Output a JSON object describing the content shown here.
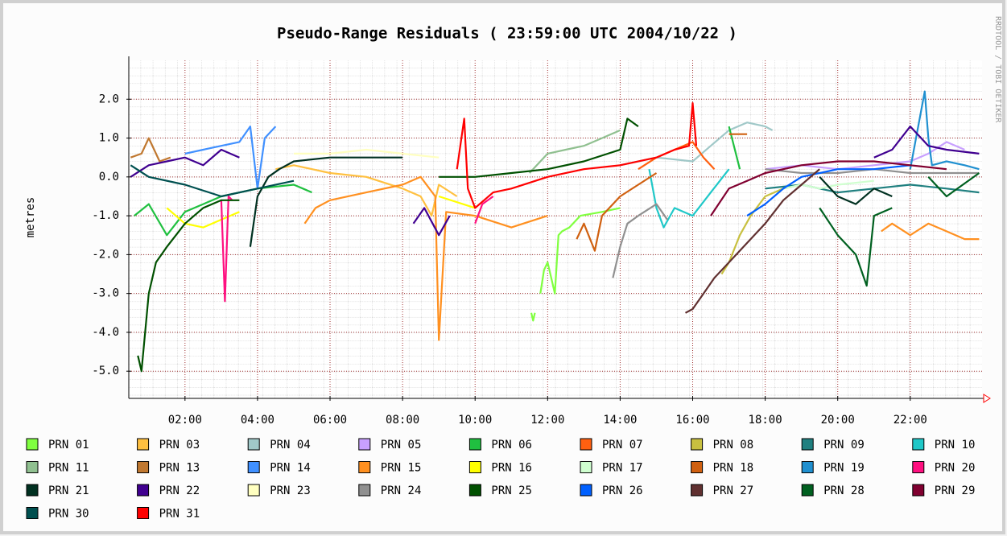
{
  "chart_data": {
    "type": "line",
    "title": "Pseudo-Range Residuals ( 23:59:00 UTC 2004/10/22 )",
    "y_label": "metres",
    "watermark": "RRDTOOL / TOBI OETIKER",
    "xlim": [
      0.45,
      23.98
    ],
    "ylim": [
      -5.7,
      3.0
    ],
    "xticks": [
      {
        "value": 2,
        "label": "02:00"
      },
      {
        "value": 4,
        "label": "04:00"
      },
      {
        "value": 6,
        "label": "06:00"
      },
      {
        "value": 8,
        "label": "08:00"
      },
      {
        "value": 10,
        "label": "10:00"
      },
      {
        "value": 12,
        "label": "12:00"
      },
      {
        "value": 14,
        "label": "14:00"
      },
      {
        "value": 16,
        "label": "16:00"
      },
      {
        "value": 18,
        "label": "18:00"
      },
      {
        "value": 20,
        "label": "20:00"
      },
      {
        "value": 22,
        "label": "22:00"
      }
    ],
    "yticks": [
      {
        "value": -5,
        "label": "-5.0"
      },
      {
        "value": -4,
        "label": "-4.0"
      },
      {
        "value": -3,
        "label": "-3.0"
      },
      {
        "value": -2,
        "label": "-2.0"
      },
      {
        "value": -1,
        "label": "-1.0"
      },
      {
        "value": 0,
        "label": "0.0"
      },
      {
        "value": 1,
        "label": "1.0"
      },
      {
        "value": 2,
        "label": "2.0"
      }
    ],
    "grid": true,
    "series": [
      {
        "name": "PRN 01",
        "color": "#80ff40",
        "x": [
          11.55,
          11.6,
          11.65,
          11.7,
          11.8,
          11.9,
          12.0,
          12.1,
          12.2,
          12.3,
          12.4,
          12.6,
          12.9,
          13.5,
          14.0
        ],
        "values": [
          -3.5,
          -3.7,
          -3.5,
          null,
          -3.0,
          -2.4,
          -2.2,
          -2.6,
          -3.0,
          -1.5,
          -1.4,
          -1.3,
          -1.0,
          -0.9,
          -0.8
        ]
      },
      {
        "name": "PRN 03",
        "color": "#ffc040",
        "x": [
          4.5,
          5,
          6,
          7,
          8,
          8.5,
          8.8,
          9,
          9.5
        ],
        "values": [
          0.2,
          0.3,
          0.1,
          0,
          -0.3,
          -0.5,
          -1.0,
          -0.2,
          -0.5
        ]
      },
      {
        "name": "PRN 04",
        "color": "#a0c8c8",
        "x": [
          14,
          15,
          16,
          16.5,
          17,
          17.5,
          18,
          18.2
        ],
        "values": [
          0.3,
          0.5,
          0.4,
          0.8,
          1.2,
          1.4,
          1.3,
          1.2
        ]
      },
      {
        "name": "PRN 05",
        "color": "#c8a0ff",
        "x": [
          18,
          19,
          20,
          21,
          22,
          22.5,
          23,
          23.5
        ],
        "values": [
          0.2,
          0.3,
          0.2,
          0.3,
          0.4,
          0.6,
          0.9,
          0.7
        ]
      },
      {
        "name": "PRN 06",
        "color": "#20c040",
        "x": [
          0.6,
          1,
          1.5,
          2,
          3,
          4,
          5,
          5.5,
          6,
          17,
          17.3
        ],
        "values": [
          -1.0,
          -0.7,
          -1.5,
          -0.9,
          -0.5,
          -0.3,
          -0.2,
          -0.4,
          null,
          1.3,
          0.2
        ]
      },
      {
        "name": "PRN 07",
        "color": "#ff6010",
        "x": [
          14.5,
          15,
          15.5,
          16,
          16.3,
          16.6
        ],
        "values": [
          0.2,
          0.5,
          0.7,
          0.9,
          0.5,
          0.2
        ]
      },
      {
        "name": "PRN 08",
        "color": "#c8c040",
        "x": [
          16.8,
          17,
          17.3,
          17.6,
          18,
          18.5,
          19
        ],
        "values": [
          -2.5,
          -2.2,
          -1.5,
          -1,
          -0.5,
          -0.3,
          -0.2
        ]
      },
      {
        "name": "PRN 09",
        "color": "#208080",
        "x": [
          18,
          19,
          20,
          21,
          22,
          23,
          23.9
        ],
        "values": [
          -0.3,
          -0.2,
          -0.4,
          -0.3,
          -0.2,
          -0.3,
          -0.4
        ]
      },
      {
        "name": "PRN 10",
        "color": "#20c8c8",
        "x": [
          14.8,
          15,
          15.2,
          15.5,
          16,
          16.5,
          17
        ],
        "values": [
          0.2,
          -0.8,
          -1.3,
          -0.8,
          -1.0,
          -0.4,
          0.2
        ]
      },
      {
        "name": "PRN 11",
        "color": "#90c090",
        "x": [
          11.5,
          12,
          12.5,
          13,
          13.5,
          14
        ],
        "values": [
          0.1,
          0.6,
          0.7,
          0.8,
          1.0,
          1.2
        ]
      },
      {
        "name": "PRN 13",
        "color": "#c07830",
        "x": [
          0.5,
          0.8,
          1.0,
          1.3,
          1.6
        ],
        "values": [
          0.5,
          0.6,
          1.0,
          0.4,
          0.5
        ]
      },
      {
        "name": "PRN 14",
        "color": "#4090ff",
        "x": [
          2,
          2.5,
          3,
          3.5,
          3.8,
          4,
          4.2,
          4.5
        ],
        "values": [
          0.6,
          0.7,
          0.8,
          0.9,
          1.3,
          -0.3,
          1.0,
          1.3
        ]
      },
      {
        "name": "PRN 15",
        "color": "#ff9020",
        "x": [
          5.3,
          5.6,
          6,
          7,
          8,
          8.5,
          8.9,
          9,
          9.2,
          10,
          11,
          12,
          16,
          21.2,
          21.5,
          22,
          22.5,
          23,
          23.5,
          23.9
        ],
        "values": [
          -1.2,
          -0.8,
          -0.6,
          -0.4,
          -0.2,
          0.0,
          -0.5,
          -4.2,
          -0.9,
          -1.0,
          -1.3,
          -1.0,
          null,
          -1.4,
          -1.2,
          -1.5,
          -1.2,
          -1.4,
          -1.6,
          -1.6
        ]
      },
      {
        "name": "PRN 16",
        "color": "#ffff00",
        "x": [
          1.5,
          2,
          2.5,
          3,
          3.5,
          6,
          9,
          10
        ],
        "values": [
          -0.8,
          -1.2,
          -1.3,
          -1.1,
          -0.9,
          null,
          -0.5,
          -0.8
        ]
      },
      {
        "name": "PRN 17",
        "color": "#d0ffd0",
        "x": [
          18.5,
          19,
          19.5,
          20,
          21
        ],
        "values": [
          -0.3,
          -0.2,
          -0.3,
          -0.2,
          -0.1
        ]
      },
      {
        "name": "PRN 18",
        "color": "#d06010",
        "x": [
          12.8,
          13,
          13.3,
          13.5,
          14,
          14.5,
          15,
          16,
          17.0,
          17.5
        ],
        "values": [
          -1.6,
          -1.2,
          -1.9,
          -1.0,
          -0.5,
          -0.2,
          0.1,
          null,
          1.1,
          1.1
        ]
      },
      {
        "name": "PRN 19",
        "color": "#2090d0",
        "x": [
          22,
          22.4,
          22.5,
          22.6,
          23,
          23.5,
          23.9
        ],
        "values": [
          0.2,
          2.2,
          1.0,
          0.3,
          0.4,
          0.3,
          0.2
        ]
      },
      {
        "name": "PRN 20",
        "color": "#ff1080",
        "x": [
          3,
          3.1,
          3.2,
          3.3,
          6,
          10,
          10.2,
          10.5
        ],
        "values": [
          -0.6,
          -3.2,
          -0.5,
          -0.6,
          null,
          -1.2,
          -0.7,
          -0.5
        ]
      },
      {
        "name": "PRN 21",
        "color": "#003020",
        "x": [
          3.8,
          4.0,
          4.3,
          4.6,
          5,
          6,
          7,
          8,
          15,
          19.5,
          20,
          20.5,
          21,
          21.5
        ],
        "values": [
          -1.8,
          -0.5,
          0,
          0.2,
          0.4,
          0.5,
          0.5,
          0.5,
          null,
          0,
          -0.5,
          -0.7,
          -0.3,
          -0.5
        ]
      },
      {
        "name": "PRN 22",
        "color": "#400090",
        "x": [
          0.5,
          1,
          1.5,
          2,
          2.5,
          3,
          3.5,
          6,
          8.3,
          8.6,
          9,
          9.3,
          15,
          21,
          21.5,
          22,
          22.5,
          23,
          23.9
        ],
        "values": [
          0,
          0.3,
          0.4,
          0.5,
          0.3,
          0.7,
          0.5,
          null,
          -1.2,
          -0.8,
          -1.5,
          -1.0,
          null,
          0.5,
          0.7,
          1.3,
          0.8,
          0.7,
          0.6
        ]
      },
      {
        "name": "PRN 23",
        "color": "#ffffc0",
        "x": [
          5,
          6,
          7,
          8,
          9
        ],
        "values": [
          0.6,
          0.6,
          0.7,
          0.6,
          0.5
        ]
      },
      {
        "name": "PRN 24",
        "color": "#909090",
        "x": [
          13.8,
          14,
          14.2,
          14.5,
          15,
          15.3,
          16,
          18,
          19,
          20,
          21,
          22,
          23,
          23.9
        ],
        "values": [
          -2.6,
          -1.8,
          -1.2,
          -1.0,
          -0.7,
          -1.1,
          null,
          0.2,
          0.1,
          0.1,
          0.2,
          0.1,
          0.1,
          0.1
        ]
      },
      {
        "name": "PRN 25",
        "color": "#005000",
        "x": [
          0.7,
          0.8,
          1,
          1.2,
          1.5,
          2,
          2.5,
          3,
          3.5,
          6,
          9,
          10,
          11,
          12,
          13,
          14,
          14.2,
          14.5
        ],
        "values": [
          -4.6,
          -5.0,
          -3.0,
          -2.2,
          -1.8,
          -1.2,
          -0.8,
          -0.6,
          -0.6,
          null,
          0,
          0,
          0.1,
          0.2,
          0.4,
          0.7,
          1.5,
          1.3
        ]
      },
      {
        "name": "PRN 26",
        "color": "#0060ff",
        "x": [
          17.5,
          18,
          18.5,
          19,
          20,
          21,
          22
        ],
        "values": [
          -1.0,
          -0.7,
          -0.3,
          0,
          0.2,
          0.2,
          0.3
        ]
      },
      {
        "name": "PRN 27",
        "color": "#603030",
        "x": [
          15.8,
          16,
          16.3,
          16.6,
          17,
          17.5,
          18,
          18.5,
          19,
          19.5
        ],
        "values": [
          -3.5,
          -3.4,
          -3.0,
          -2.6,
          -2.2,
          -1.7,
          -1.2,
          -0.6,
          -0.2,
          0.2
        ]
      },
      {
        "name": "PRN 28",
        "color": "#006020",
        "x": [
          19.5,
          20,
          20.5,
          20.8,
          21,
          21.5,
          22,
          22.5,
          23,
          23.9
        ],
        "values": [
          -0.8,
          -1.5,
          -2.0,
          -2.8,
          -1.0,
          -0.8,
          null,
          0.0,
          -0.5,
          0.1
        ]
      },
      {
        "name": "PRN 29",
        "color": "#800030",
        "x": [
          16.5,
          17,
          17.5,
          18,
          19,
          20,
          21,
          22,
          23
        ],
        "values": [
          -1.0,
          -0.3,
          -0.1,
          0.1,
          0.3,
          0.4,
          0.4,
          0.3,
          0.2
        ]
      },
      {
        "name": "PRN 30",
        "color": "#005050",
        "x": [
          0.5,
          1,
          2,
          3,
          4,
          5
        ],
        "values": [
          0.3,
          0,
          -0.2,
          -0.5,
          -0.3,
          -0.1
        ]
      },
      {
        "name": "PRN 31",
        "color": "#ff0000",
        "x": [
          9.5,
          9.7,
          9.8,
          10,
          10.5,
          11,
          12,
          13,
          14,
          15,
          15.5,
          15.9,
          16,
          16.1
        ],
        "values": [
          0.2,
          1.5,
          -0.3,
          -0.8,
          -0.4,
          -0.3,
          0.0,
          0.2,
          0.3,
          0.5,
          0.7,
          0.8,
          1.9,
          0.8
        ]
      }
    ]
  }
}
